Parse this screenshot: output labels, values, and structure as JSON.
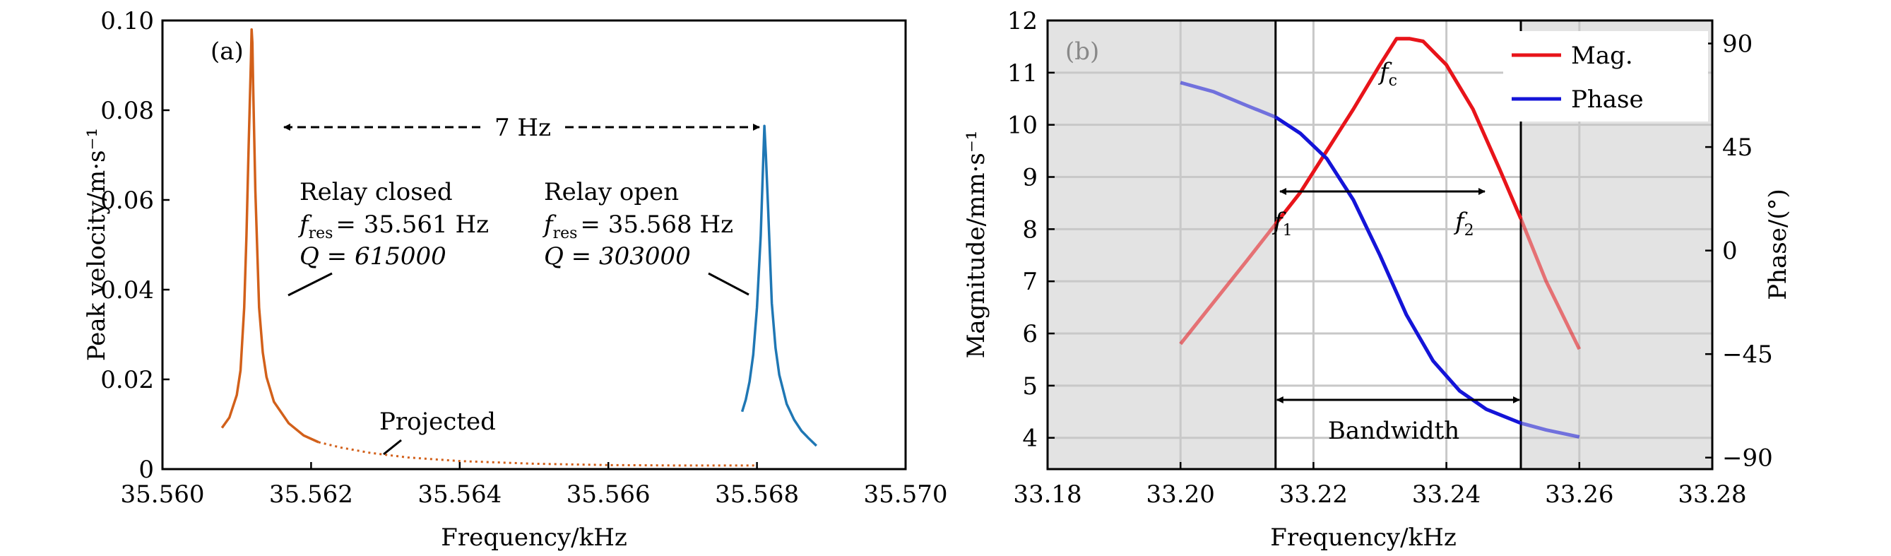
{
  "chart_data": [
    {
      "type": "line",
      "panel_label": "(a)",
      "xlabel": "Frequency/kHz",
      "ylabel": "Peak velocity/m·s⁻¹",
      "xlim": [
        35.56,
        35.57
      ],
      "ylim": [
        0,
        0.1
      ],
      "x_ticks": [
        "35.560",
        "35.562",
        "35.564",
        "35.566",
        "35.568",
        "35.570"
      ],
      "y_ticks": [
        "0",
        "0.02",
        "0.04",
        "0.06",
        "0.08",
        "0.10"
      ],
      "colors": {
        "closed": "#d2601a",
        "open": "#1f77b4"
      },
      "series": [
        {
          "name": "Relay closed",
          "x": [
            35.5608,
            35.5609,
            35.561,
            35.56105,
            35.5611,
            35.56113,
            35.56116,
            35.56119,
            35.5612,
            35.56121,
            35.56122,
            35.56125,
            35.5613,
            35.56135,
            35.5614,
            35.5615,
            35.5617,
            35.5619,
            35.5621
          ],
          "y": [
            0.0092,
            0.0115,
            0.0165,
            0.022,
            0.036,
            0.052,
            0.072,
            0.091,
            0.098,
            0.095,
            0.086,
            0.062,
            0.036,
            0.026,
            0.0205,
            0.015,
            0.0102,
            0.0075,
            0.006
          ]
        },
        {
          "name": "Projected",
          "x": [
            35.5621,
            35.5624,
            35.5628,
            35.5633,
            35.564,
            35.565,
            35.566,
            35.567,
            35.568
          ],
          "y": [
            0.006,
            0.0048,
            0.0036,
            0.0026,
            0.0018,
            0.0012,
            0.0009,
            0.0008,
            0.0008
          ]
        },
        {
          "name": "Relay open",
          "x": [
            35.5678,
            35.56785,
            35.5679,
            35.56795,
            35.568,
            35.56805,
            35.5681,
            35.56812,
            35.56815,
            35.5682,
            35.56825,
            35.5683,
            35.5684,
            35.5685,
            35.5686,
            35.5687,
            35.5688
          ],
          "y": [
            0.0128,
            0.0155,
            0.0195,
            0.0255,
            0.036,
            0.052,
            0.0765,
            0.07,
            0.058,
            0.037,
            0.027,
            0.021,
            0.0145,
            0.011,
            0.0085,
            0.0068,
            0.0052
          ]
        }
      ],
      "annotations": {
        "span": "7 Hz",
        "closed_title": "Relay closed",
        "closed_f_sym": "f",
        "closed_f_sub": "res",
        "closed_f_val": "= 35.561 Hz",
        "closed_q": "Q = 615000",
        "open_title": "Relay open",
        "open_f_sym": "f",
        "open_f_sub": "res",
        "open_f_val": "= 35.568 Hz",
        "open_q": "Q = 303000",
        "projected": "Projected"
      }
    },
    {
      "type": "line",
      "panel_label": "(b)",
      "xlabel": "Frequency/kHz",
      "ylabel": "Magnitude/mm·s⁻¹",
      "y2label": "Phase/(°)",
      "xlim": [
        33.18,
        33.28
      ],
      "ylim": [
        3.4,
        12
      ],
      "y2lim": [
        -95,
        100
      ],
      "x_ticks": [
        "33.18",
        "33.20",
        "33.22",
        "33.24",
        "33.26",
        "33.28"
      ],
      "y_ticks": [
        "4",
        "5",
        "6",
        "7",
        "8",
        "9",
        "10",
        "11",
        "12"
      ],
      "y2_ticks": [
        "−90",
        "−45",
        "0",
        "45",
        "90"
      ],
      "colors": {
        "mag": "#e8141a",
        "phase": "#1414d8",
        "shade": "#e3e3e3"
      },
      "band": [
        33.2143,
        33.2512
      ],
      "series": [
        {
          "name": "Mag.",
          "x": [
            33.2,
            33.205,
            33.21,
            33.2143,
            33.218,
            33.222,
            33.226,
            33.23,
            33.2325,
            33.2345,
            33.2365,
            33.24,
            33.244,
            33.248,
            33.2512,
            33.255,
            33.26
          ],
          "y": [
            5.8,
            6.6,
            7.4,
            8.1,
            8.7,
            9.5,
            10.3,
            11.15,
            11.65,
            11.65,
            11.6,
            11.15,
            10.3,
            9.15,
            8.2,
            7.0,
            5.7
          ]
        },
        {
          "name": "Phase",
          "x": [
            33.2,
            33.205,
            33.21,
            33.2143,
            33.218,
            33.222,
            33.226,
            33.23,
            33.234,
            33.238,
            33.242,
            33.246,
            33.2512,
            33.255,
            33.26
          ],
          "y": [
            73,
            69,
            63,
            58,
            51,
            40,
            22,
            -2,
            -28,
            -48,
            -61,
            -69,
            -75,
            -78,
            -81
          ]
        }
      ],
      "annotations": {
        "fc_sym": "f",
        "fc_sub": "c",
        "f1_sym": "f",
        "f1_sub": "1",
        "f2_sym": "f",
        "f2_sub": "2",
        "bandwidth": "Bandwidth"
      },
      "legend": {
        "placement": "top-right",
        "items": [
          "Mag.",
          "Phase"
        ]
      }
    }
  ]
}
